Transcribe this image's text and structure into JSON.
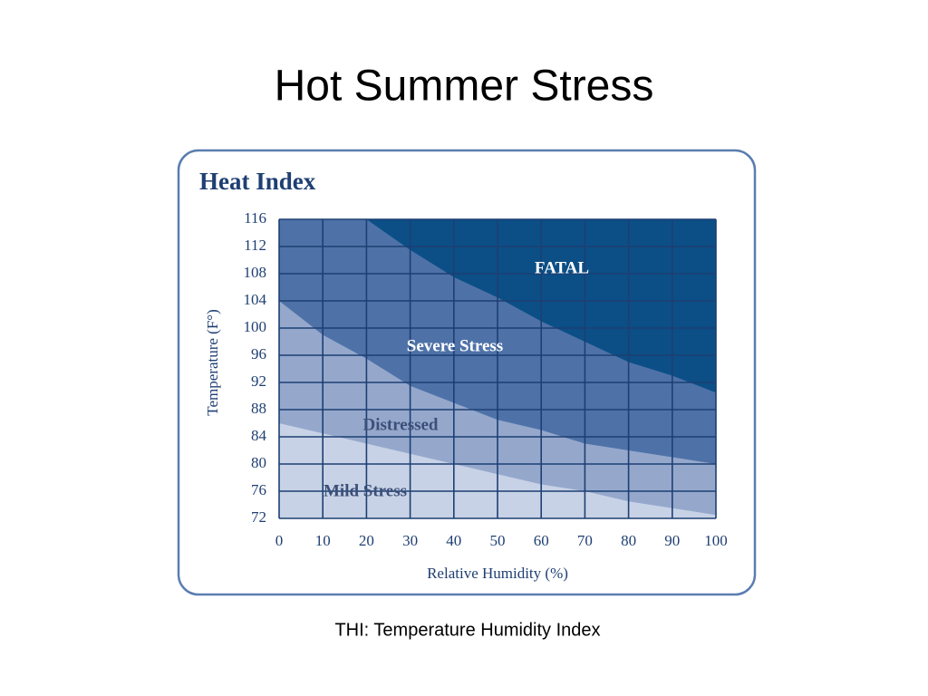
{
  "slide": {
    "title": "Hot Summer Stress",
    "caption": "THI: Temperature Humidity Index"
  },
  "chart_data": {
    "type": "zones",
    "title": "Heat Index",
    "x_label": "Relative Humidity (%)",
    "y_label": "Temperature (F°)",
    "x": [
      0,
      10,
      20,
      30,
      40,
      50,
      60,
      70,
      80,
      90,
      100
    ],
    "top_zone": {
      "name": "FATAL",
      "color": "#0b4f86"
    },
    "series": [
      {
        "name": "Mild Stress",
        "color": "#c8d2e6",
        "values": [
          86,
          84.5,
          83,
          81.5,
          80,
          78.5,
          77,
          76,
          74.5,
          73.5,
          72.5
        ]
      },
      {
        "name": "Distressed",
        "color": "#95a8cc",
        "values": [
          104,
          99,
          95.5,
          91.5,
          89,
          86.5,
          85,
          83,
          82,
          81,
          80
        ]
      },
      {
        "name": "Severe Stress",
        "color": "#4e72a8",
        "values": [
          null,
          null,
          116,
          111.5,
          107.5,
          104.5,
          101,
          98,
          95,
          93,
          90.5
        ]
      }
    ],
    "xlim": [
      0,
      100
    ],
    "ylim": [
      72,
      116
    ],
    "xticks": [
      0,
      10,
      20,
      30,
      40,
      50,
      60,
      70,
      80,
      90,
      100
    ],
    "yticks": [
      72,
      76,
      80,
      84,
      88,
      92,
      96,
      100,
      104,
      108,
      112,
      116
    ],
    "grid": true
  }
}
